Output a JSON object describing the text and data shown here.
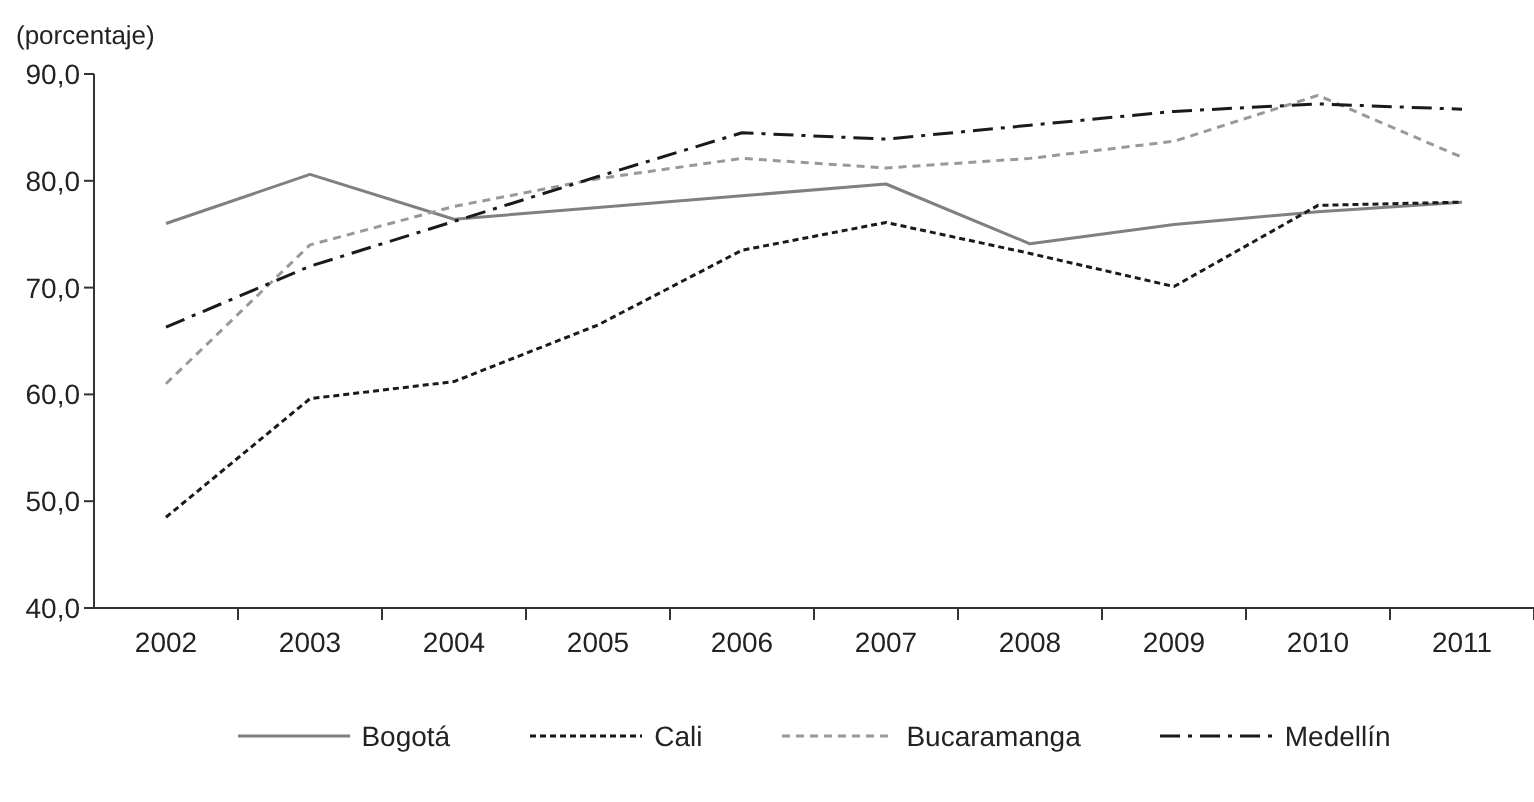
{
  "chart_data": {
    "type": "line",
    "ylabel": "(porcentaje)",
    "categories": [
      "2002",
      "2003",
      "2004",
      "2005",
      "2006",
      "2007",
      "2008",
      "2009",
      "2010",
      "2011"
    ],
    "series": [
      {
        "name": "Bogotá",
        "color": "#808080",
        "line_style": "solid",
        "values": [
          76.0,
          80.6,
          76.4,
          77.5,
          78.6,
          79.7,
          74.1,
          75.9,
          77.1,
          78.0
        ]
      },
      {
        "name": "Cali",
        "color": "#1a1a1a",
        "line_style": "dotted",
        "values": [
          48.5,
          59.6,
          61.2,
          66.5,
          73.5,
          76.1,
          73.2,
          70.1,
          77.7,
          78.0
        ]
      },
      {
        "name": "Bucaramanga",
        "color": "#999999",
        "line_style": "dashed",
        "values": [
          61.0,
          74.0,
          77.6,
          80.2,
          82.1,
          81.2,
          82.1,
          83.7,
          88.0,
          82.2
        ]
      },
      {
        "name": "Medellín",
        "color": "#1a1a1a",
        "line_style": "dashdot",
        "values": [
          66.3,
          72.0,
          76.2,
          80.4,
          84.5,
          83.9,
          85.2,
          86.5,
          87.2,
          86.7
        ]
      }
    ],
    "ylim": [
      40,
      90
    ],
    "yticks": [
      {
        "value": 40,
        "label": "40,0"
      },
      {
        "value": 50,
        "label": "50,0"
      },
      {
        "value": 60,
        "label": "60,0"
      },
      {
        "value": 70,
        "label": "70,0"
      },
      {
        "value": 80,
        "label": "80,0"
      },
      {
        "value": 90,
        "label": "90,0"
      }
    ],
    "grid": false,
    "legend": "bottom",
    "marker": "none"
  }
}
